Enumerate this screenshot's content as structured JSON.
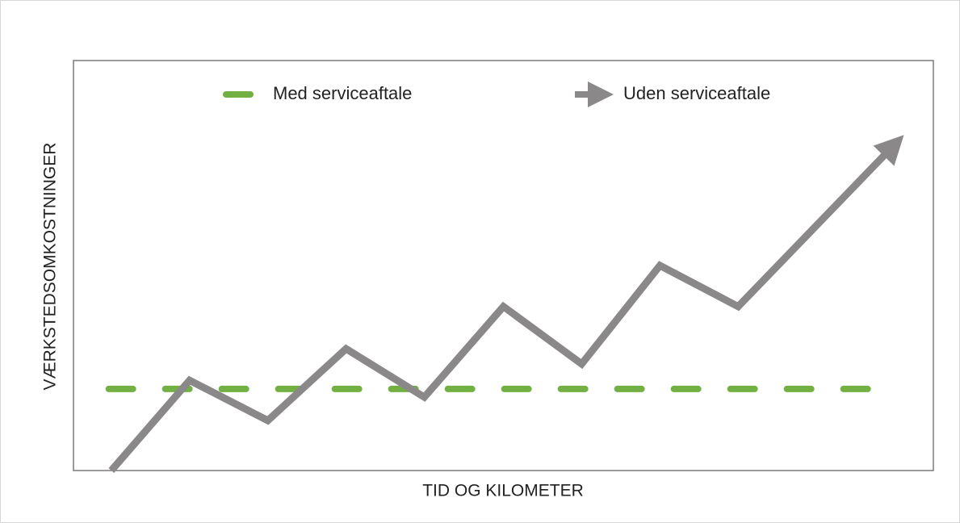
{
  "chart_data": {
    "type": "line",
    "x_label": "TID OG KILOMETER",
    "y_label": "VÆRKSTEDSOMKOSTNINGER",
    "xlim": [
      0,
      100
    ],
    "ylim": [
      0,
      100
    ],
    "legend": "top",
    "series": [
      {
        "name": "Med serviceaftale",
        "color": "#72b043",
        "style": "dashed",
        "x": [
          4.1,
          93
        ],
        "values": [
          19.9,
          19.9
        ]
      },
      {
        "name": "Uden serviceaftale",
        "color": "#8a8888",
        "style": "arrow",
        "x": [
          4.4,
          13.5,
          22.6,
          31.7,
          40.8,
          50.0,
          59.1,
          68.2,
          77.3,
          95.4
        ],
        "values": [
          0,
          22,
          12.2,
          29.7,
          17.9,
          40,
          26,
          50,
          40,
          79.3
        ]
      }
    ]
  }
}
